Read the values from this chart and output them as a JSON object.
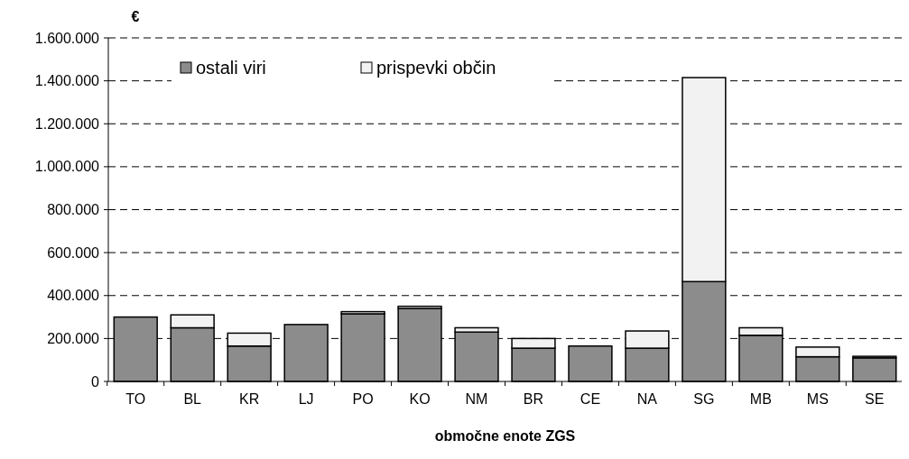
{
  "chart_data": {
    "type": "bar",
    "stacked": true,
    "ylabel": "€",
    "xlabel": "območne enote ZGS",
    "categories": [
      "TO",
      "BL",
      "KR",
      "LJ",
      "PO",
      "KO",
      "NM",
      "BR",
      "CE",
      "NA",
      "SG",
      "MB",
      "MS",
      "SE"
    ],
    "series": [
      {
        "name": "ostali viri",
        "color": "#8c8c8c",
        "values": [
          300000,
          250000,
          165000,
          265000,
          315000,
          340000,
          230000,
          155000,
          165000,
          155000,
          465000,
          215000,
          115000,
          110000
        ]
      },
      {
        "name": "prispevki občin",
        "color": "#f2f2f2",
        "values": [
          0,
          60000,
          60000,
          0,
          10000,
          10000,
          20000,
          45000,
          0,
          80000,
          950000,
          35000,
          45000,
          7000
        ]
      }
    ],
    "ylim": [
      0,
      1600000
    ],
    "yticks": [
      0,
      {
        "value": 200000,
        "label": "200.000"
      },
      {
        "value": 400000,
        "label": "400.000"
      },
      {
        "value": 600000,
        "label": "600.000"
      },
      {
        "value": 800000,
        "label": "800.000"
      },
      {
        "value": 1000000,
        "label": "1.000.000"
      },
      {
        "value": 1200000,
        "label": "1.200.000"
      },
      {
        "value": 1400000,
        "label": "1.400.000"
      },
      {
        "value": 1600000,
        "label": "1.600.000"
      }
    ],
    "grid": "y",
    "legend": "top left"
  }
}
